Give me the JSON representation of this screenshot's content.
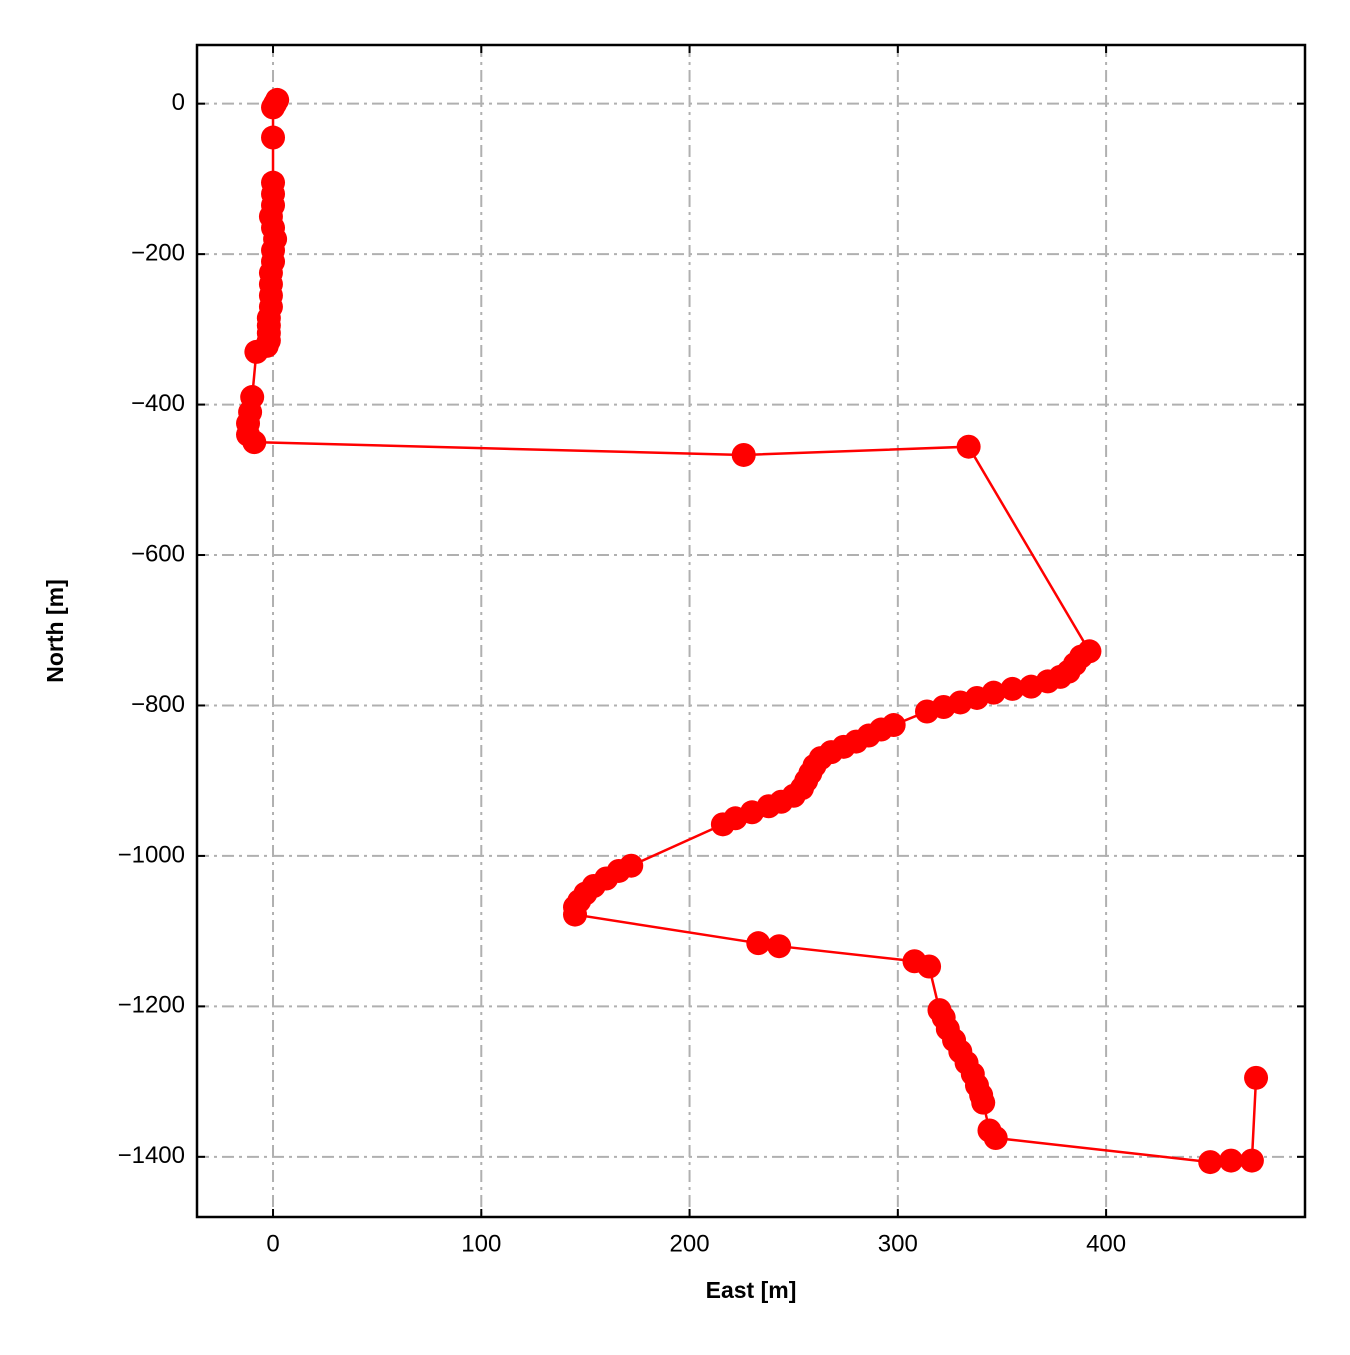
{
  "chart_data": {
    "type": "line",
    "xlabel": "East [m]",
    "ylabel": "North [m]",
    "color": "#ff0000",
    "marker": true,
    "grid": true,
    "x": [
      2,
      1,
      0,
      0,
      0,
      0,
      0,
      -1,
      0,
      1,
      0,
      0,
      -1,
      -1,
      -1,
      -1,
      -2,
      -2,
      -2,
      -2,
      -3,
      -8,
      -10,
      -11,
      -12,
      -12,
      -9,
      226,
      334,
      392,
      388,
      385,
      382,
      378,
      372,
      364,
      355,
      346,
      338,
      330,
      322,
      314,
      298,
      292,
      286,
      280,
      274,
      268,
      263,
      260,
      258,
      256,
      254,
      250,
      244,
      238,
      230,
      222,
      216,
      172,
      166,
      160,
      154,
      150,
      147,
      145,
      145,
      233,
      243,
      308,
      315,
      320,
      322,
      324,
      327,
      330,
      333,
      336,
      338,
      340,
      341,
      344,
      347,
      450,
      460,
      470,
      472
    ],
    "values": [
      5,
      0,
      -5,
      -45,
      -105,
      -120,
      -135,
      -150,
      -165,
      -180,
      -195,
      -210,
      -225,
      -240,
      -255,
      -270,
      -285,
      -295,
      -305,
      -315,
      -322,
      -330,
      -390,
      -410,
      -425,
      -440,
      -450,
      -467,
      -456,
      -728,
      -735,
      -745,
      -755,
      -762,
      -768,
      -775,
      -778,
      -783,
      -790,
      -796,
      -802,
      -808,
      -826,
      -832,
      -840,
      -848,
      -855,
      -862,
      -870,
      -880,
      -890,
      -900,
      -910,
      -920,
      -928,
      -934,
      -942,
      -950,
      -958,
      -1013,
      -1020,
      -1030,
      -1040,
      -1050,
      -1060,
      -1068,
      -1078,
      -1116,
      -1120,
      -1140,
      -1147,
      -1205,
      -1215,
      -1230,
      -1245,
      -1260,
      -1275,
      -1290,
      -1305,
      -1318,
      -1328,
      -1365,
      -1375,
      -1407,
      -1405,
      -1405,
      -1295
    ],
    "xlim": [
      -36.5,
      495.5
    ],
    "ylim": [
      -1480,
      78
    ],
    "xticks": [
      0,
      100,
      200,
      300,
      400
    ],
    "yticks": [
      0,
      {
        "value": -200,
        "label": "−200"
      },
      {
        "value": -400,
        "label": "−400"
      },
      {
        "value": -600,
        "label": "−600"
      },
      {
        "value": -800,
        "label": "−800"
      },
      {
        "value": -1000,
        "label": "−1000"
      },
      {
        "value": -1200,
        "label": "−1200"
      },
      {
        "value": -1400,
        "label": "−1400"
      }
    ]
  }
}
